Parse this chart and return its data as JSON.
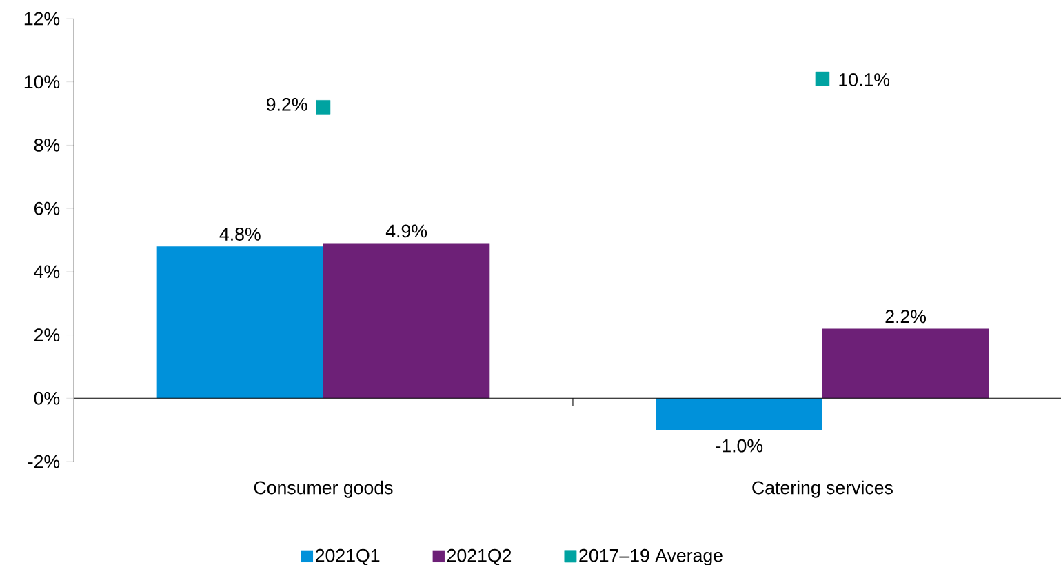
{
  "chart_data": {
    "type": "bar",
    "categories": [
      "Consumer goods",
      "Catering services"
    ],
    "series": [
      {
        "name": "2021Q1",
        "color": "#0091da",
        "values": [
          4.8,
          -1.0
        ],
        "value_labels": [
          "4.8%",
          "-1.0%"
        ]
      },
      {
        "name": "2021Q2",
        "color": "#6d2077",
        "values": [
          4.9,
          2.2
        ],
        "value_labels": [
          "4.9%",
          "2.2%"
        ]
      },
      {
        "name": "2017–19 Average",
        "type": "scatter",
        "marker": "square",
        "color": "#00a3a1",
        "values": [
          9.2,
          10.1
        ],
        "value_labels": [
          "9.2%",
          "10.1%"
        ]
      }
    ],
    "ylim": [
      -2,
      12
    ],
    "yticks": [
      {
        "value": -2,
        "label": "-2%"
      },
      {
        "value": 0,
        "label": "0%"
      },
      {
        "value": 2,
        "label": "2%"
      },
      {
        "value": 4,
        "label": "4%"
      },
      {
        "value": 6,
        "label": "6%"
      },
      {
        "value": 8,
        "label": "8%"
      },
      {
        "value": 10,
        "label": "10%"
      },
      {
        "value": 12,
        "label": "12%"
      }
    ],
    "legend": "bottom"
  }
}
